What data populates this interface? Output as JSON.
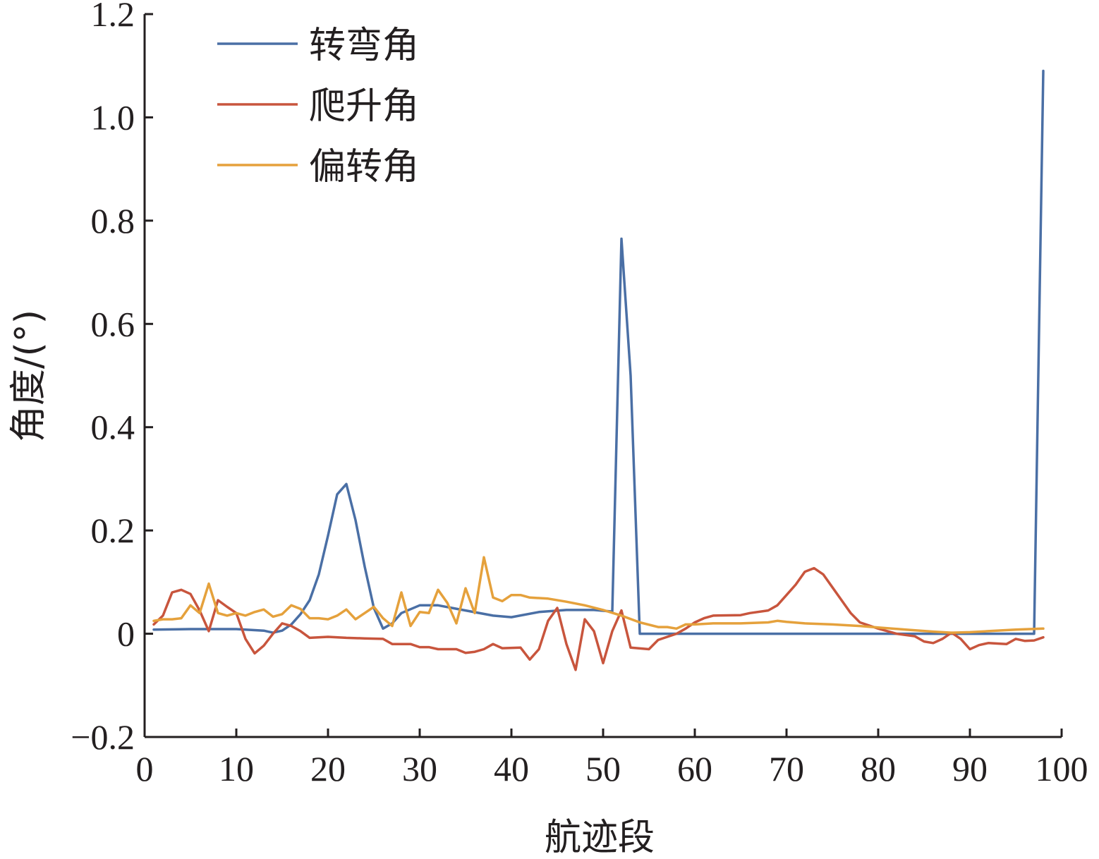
{
  "chart_data": {
    "type": "line",
    "xlabel": "航迹段",
    "ylabel": "角度/(°)",
    "xlim": [
      0,
      100
    ],
    "ylim": [
      -0.2,
      1.2
    ],
    "x_ticks": [
      "0",
      "10",
      "20",
      "30",
      "40",
      "50",
      "60",
      "70",
      "80",
      "90",
      "100"
    ],
    "y_ticks": [
      "−0.2",
      "0",
      "0.2",
      "0.4",
      "0.6",
      "0.8",
      "1.0",
      "1.2"
    ],
    "grid": false,
    "legend_position": "top-left",
    "series": [
      {
        "name": "转弯角",
        "color": "#4a6fa5",
        "points": [
          [
            1,
            0.008
          ],
          [
            5,
            0.009
          ],
          [
            10,
            0.009
          ],
          [
            13,
            0.006
          ],
          [
            14,
            0.002
          ],
          [
            15,
            0.006
          ],
          [
            16,
            0.018
          ],
          [
            17,
            0.038
          ],
          [
            18,
            0.065
          ],
          [
            19,
            0.115
          ],
          [
            20,
            0.19
          ],
          [
            21,
            0.27
          ],
          [
            22,
            0.29
          ],
          [
            23,
            0.22
          ],
          [
            24,
            0.13
          ],
          [
            25,
            0.05
          ],
          [
            26,
            0.01
          ],
          [
            27,
            0.02
          ],
          [
            28,
            0.04
          ],
          [
            30,
            0.055
          ],
          [
            32,
            0.055
          ],
          [
            35,
            0.045
          ],
          [
            38,
            0.035
          ],
          [
            40,
            0.032
          ],
          [
            43,
            0.042
          ],
          [
            46,
            0.046
          ],
          [
            49,
            0.046
          ],
          [
            51,
            0.043
          ],
          [
            52,
            0.765
          ],
          [
            53,
            0.5
          ],
          [
            54,
            0.0
          ],
          [
            60,
            0.0
          ],
          [
            70,
            0.0
          ],
          [
            80,
            0.0
          ],
          [
            90,
            0.0
          ],
          [
            97,
            0.0
          ],
          [
            98,
            1.09
          ]
        ]
      },
      {
        "name": "爬升角",
        "color": "#c8553d",
        "points": [
          [
            1,
            0.018
          ],
          [
            2,
            0.035
          ],
          [
            3,
            0.08
          ],
          [
            4,
            0.085
          ],
          [
            5,
            0.077
          ],
          [
            6,
            0.045
          ],
          [
            7,
            0.005
          ],
          [
            8,
            0.065
          ],
          [
            9,
            0.052
          ],
          [
            10,
            0.04
          ],
          [
            11,
            -0.01
          ],
          [
            12,
            -0.038
          ],
          [
            13,
            -0.023
          ],
          [
            14,
            0.0
          ],
          [
            15,
            0.02
          ],
          [
            16,
            0.015
          ],
          [
            17,
            0.005
          ],
          [
            18,
            -0.008
          ],
          [
            20,
            -0.006
          ],
          [
            22,
            -0.008
          ],
          [
            24,
            -0.009
          ],
          [
            26,
            -0.01
          ],
          [
            27,
            -0.02
          ],
          [
            29,
            -0.02
          ],
          [
            30,
            -0.026
          ],
          [
            31,
            -0.026
          ],
          [
            32,
            -0.03
          ],
          [
            34,
            -0.03
          ],
          [
            35,
            -0.037
          ],
          [
            36,
            -0.035
          ],
          [
            37,
            -0.03
          ],
          [
            38,
            -0.02
          ],
          [
            39,
            -0.028
          ],
          [
            41,
            -0.027
          ],
          [
            42,
            -0.05
          ],
          [
            43,
            -0.03
          ],
          [
            44,
            0.025
          ],
          [
            45,
            0.05
          ],
          [
            46,
            -0.02
          ],
          [
            47,
            -0.07
          ],
          [
            48,
            0.028
          ],
          [
            49,
            0.005
          ],
          [
            50,
            -0.057
          ],
          [
            51,
            0.005
          ],
          [
            52,
            0.045
          ],
          [
            53,
            -0.027
          ],
          [
            55,
            -0.03
          ],
          [
            56,
            -0.012
          ],
          [
            58,
            0.0
          ],
          [
            59,
            0.01
          ],
          [
            60,
            0.022
          ],
          [
            61,
            0.03
          ],
          [
            62,
            0.035
          ],
          [
            65,
            0.036
          ],
          [
            66,
            0.04
          ],
          [
            68,
            0.045
          ],
          [
            69,
            0.055
          ],
          [
            70,
            0.075
          ],
          [
            71,
            0.095
          ],
          [
            72,
            0.12
          ],
          [
            73,
            0.127
          ],
          [
            74,
            0.115
          ],
          [
            75,
            0.09
          ],
          [
            76,
            0.065
          ],
          [
            77,
            0.04
          ],
          [
            78,
            0.022
          ],
          [
            80,
            0.01
          ],
          [
            82,
            0.0
          ],
          [
            84,
            -0.005
          ],
          [
            85,
            -0.015
          ],
          [
            86,
            -0.018
          ],
          [
            87,
            -0.01
          ],
          [
            88,
            0.002
          ],
          [
            89,
            -0.01
          ],
          [
            90,
            -0.03
          ],
          [
            91,
            -0.022
          ],
          [
            92,
            -0.018
          ],
          [
            94,
            -0.02
          ],
          [
            95,
            -0.01
          ],
          [
            96,
            -0.014
          ],
          [
            97,
            -0.013
          ],
          [
            98,
            -0.007
          ]
        ]
      },
      {
        "name": "偏转角",
        "color": "#e5a13c",
        "points": [
          [
            1,
            0.025
          ],
          [
            2,
            0.028
          ],
          [
            3,
            0.028
          ],
          [
            4,
            0.03
          ],
          [
            5,
            0.055
          ],
          [
            6,
            0.04
          ],
          [
            7,
            0.097
          ],
          [
            8,
            0.04
          ],
          [
            9,
            0.035
          ],
          [
            10,
            0.04
          ],
          [
            11,
            0.035
          ],
          [
            12,
            0.042
          ],
          [
            13,
            0.047
          ],
          [
            14,
            0.033
          ],
          [
            15,
            0.038
          ],
          [
            16,
            0.055
          ],
          [
            17,
            0.048
          ],
          [
            18,
            0.03
          ],
          [
            19,
            0.03
          ],
          [
            20,
            0.028
          ],
          [
            21,
            0.035
          ],
          [
            22,
            0.047
          ],
          [
            23,
            0.028
          ],
          [
            24,
            0.04
          ],
          [
            25,
            0.052
          ],
          [
            26,
            0.03
          ],
          [
            27,
            0.015
          ],
          [
            28,
            0.08
          ],
          [
            29,
            0.015
          ],
          [
            30,
            0.042
          ],
          [
            31,
            0.04
          ],
          [
            32,
            0.085
          ],
          [
            33,
            0.06
          ],
          [
            34,
            0.02
          ],
          [
            35,
            0.088
          ],
          [
            36,
            0.04
          ],
          [
            37,
            0.148
          ],
          [
            38,
            0.07
          ],
          [
            39,
            0.063
          ],
          [
            40,
            0.075
          ],
          [
            41,
            0.075
          ],
          [
            42,
            0.07
          ],
          [
            44,
            0.068
          ],
          [
            46,
            0.062
          ],
          [
            48,
            0.055
          ],
          [
            50,
            0.046
          ],
          [
            52,
            0.035
          ],
          [
            54,
            0.022
          ],
          [
            56,
            0.013
          ],
          [
            57,
            0.013
          ],
          [
            58,
            0.01
          ],
          [
            59,
            0.018
          ],
          [
            60,
            0.018
          ],
          [
            62,
            0.02
          ],
          [
            65,
            0.02
          ],
          [
            68,
            0.022
          ],
          [
            69,
            0.025
          ],
          [
            70,
            0.023
          ],
          [
            72,
            0.02
          ],
          [
            75,
            0.018
          ],
          [
            78,
            0.015
          ],
          [
            80,
            0.012
          ],
          [
            83,
            0.008
          ],
          [
            86,
            0.004
          ],
          [
            88,
            0.002
          ],
          [
            90,
            0.003
          ],
          [
            92,
            0.005
          ],
          [
            95,
            0.008
          ],
          [
            98,
            0.01
          ]
        ]
      }
    ]
  }
}
